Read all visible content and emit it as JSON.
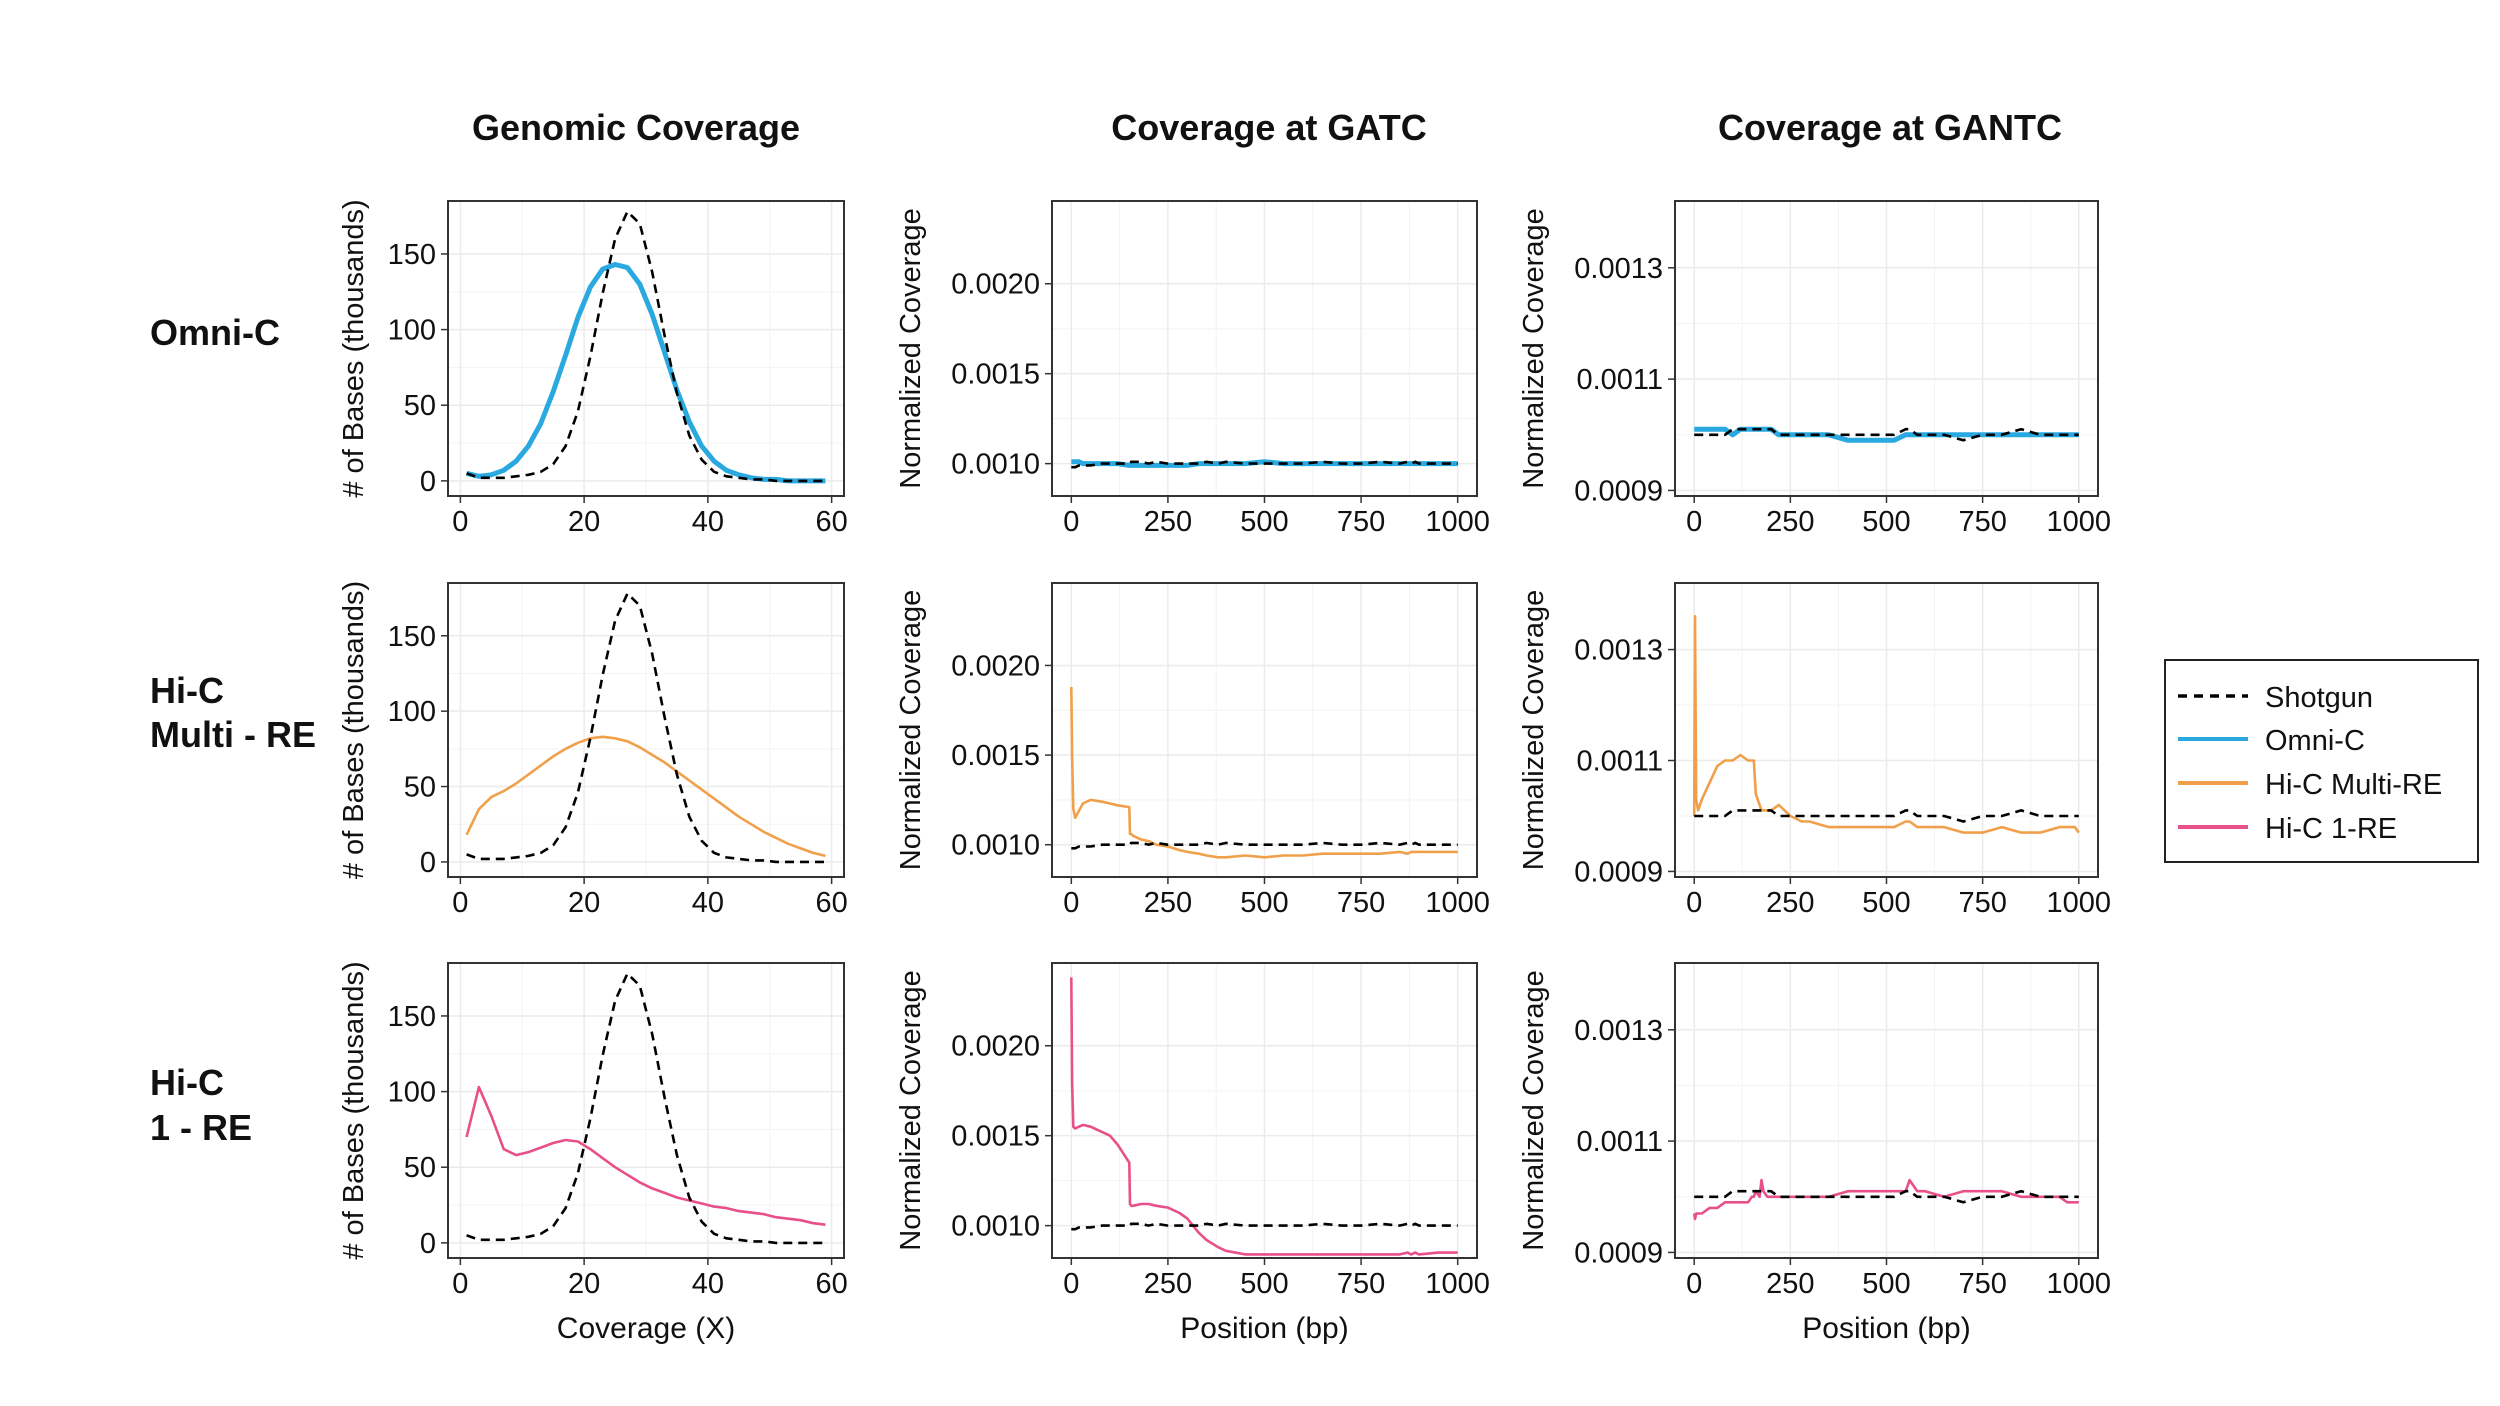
{
  "columns": [
    {
      "key": "genomic",
      "title": "Genomic Coverage"
    },
    {
      "key": "gatc",
      "title": "Coverage at GATC"
    },
    {
      "key": "gantc",
      "title": "Coverage at GANTC"
    }
  ],
  "rows": [
    {
      "key": "omni",
      "label_lines": [
        "Omni-C"
      ],
      "series": "omni"
    },
    {
      "key": "multi",
      "label_lines": [
        "Hi-C",
        "Multi - RE"
      ],
      "series": "multi"
    },
    {
      "key": "one",
      "label_lines": [
        "Hi-C",
        "1 - RE"
      ],
      "series": "one"
    }
  ],
  "colors": {
    "shotgun": "#000000",
    "omni": "#29a9e0",
    "multi": "#f0a04b",
    "one": "#e8508a",
    "grid": "#ebebeb",
    "frame": "#333333"
  },
  "legend": {
    "position": "right",
    "entries": [
      {
        "key": "shotgun",
        "label": "Shotgun",
        "style": "dashed"
      },
      {
        "key": "omni",
        "label": "Omni-C",
        "style": "solid"
      },
      {
        "key": "multi",
        "label": "Hi-C Multi-RE",
        "style": "solid"
      },
      {
        "key": "one",
        "label": "Hi-C 1-RE",
        "style": "solid"
      }
    ]
  },
  "chart_data": [
    {
      "id": "genomic",
      "type": "line",
      "title": "Genomic Coverage",
      "xlabel": "Coverage (X)",
      "ylabel": "# of Bases (thousands)",
      "xlim": [
        -2,
        62
      ],
      "ylim": [
        -10,
        185
      ],
      "xticks": [
        0,
        20,
        40,
        60
      ],
      "yticks": [
        0,
        50,
        100,
        150
      ],
      "ytick_labels": [
        "0",
        "50",
        "100",
        "150"
      ],
      "x": [
        1,
        3,
        5,
        7,
        9,
        11,
        13,
        15,
        17,
        19,
        21,
        23,
        25,
        27,
        29,
        31,
        33,
        35,
        37,
        39,
        41,
        43,
        45,
        47,
        49,
        51,
        53,
        55,
        57,
        59
      ],
      "shotgun": [
        5,
        2,
        2,
        2,
        3,
        4,
        6,
        11,
        23,
        46,
        82,
        124,
        160,
        178,
        170,
        138,
        96,
        58,
        30,
        14,
        6,
        3,
        2,
        1,
        1,
        0,
        0,
        0,
        0,
        0
      ],
      "omni": [
        5,
        3,
        4,
        7,
        13,
        23,
        38,
        59,
        83,
        108,
        128,
        140,
        143,
        141,
        130,
        110,
        85,
        60,
        39,
        23,
        13,
        7,
        4,
        2,
        1,
        1,
        0,
        0,
        0,
        0
      ],
      "multi": [
        18,
        35,
        43,
        47,
        52,
        58,
        64,
        70,
        75,
        79,
        82,
        83,
        82,
        80,
        76,
        71,
        66,
        60,
        54,
        48,
        42,
        36,
        30,
        25,
        20,
        16,
        12,
        9,
        6,
        4
      ],
      "one": [
        70,
        103,
        84,
        62,
        58,
        60,
        63,
        66,
        68,
        67,
        62,
        56,
        50,
        45,
        40,
        36,
        33,
        30,
        28,
        26,
        24,
        23,
        21,
        20,
        19,
        17,
        16,
        15,
        13,
        12
      ]
    },
    {
      "id": "gatc",
      "type": "line",
      "title": "Coverage at GATC",
      "xlabel": "Position (bp)",
      "ylabel": "Normalized Coverage",
      "xlim": [
        -50,
        1050
      ],
      "ylim": [
        0.00082,
        0.00246
      ],
      "xticks": [
        0,
        250,
        500,
        750,
        1000
      ],
      "yticks": [
        0.001,
        0.0015,
        0.002
      ],
      "ytick_labels": [
        "0.0010",
        "0.0015",
        "0.0020"
      ],
      "x": [
        0,
        2,
        5,
        10,
        20,
        30,
        50,
        80,
        100,
        120,
        150,
        152,
        155,
        160,
        180,
        200,
        220,
        250,
        280,
        300,
        330,
        350,
        380,
        400,
        450,
        500,
        550,
        600,
        650,
        700,
        750,
        800,
        850,
        870,
        880,
        890,
        900,
        950,
        1000
      ],
      "shotgun": [
        0.00098,
        0.00098,
        0.00098,
        0.00098,
        0.00099,
        0.00099,
        0.00099,
        0.001,
        0.001,
        0.001,
        0.001,
        0.001,
        0.00101,
        0.00101,
        0.00101,
        0.001,
        0.00101,
        0.001,
        0.001,
        0.001,
        0.001,
        0.00101,
        0.001,
        0.00101,
        0.001,
        0.001,
        0.001,
        0.001,
        0.00101,
        0.001,
        0.001,
        0.00101,
        0.001,
        0.00101,
        0.001,
        0.00101,
        0.001,
        0.001,
        0.001
      ],
      "omni": [
        0.00101,
        0.00101,
        0.00101,
        0.00101,
        0.00101,
        0.001,
        0.001,
        0.001,
        0.001,
        0.001,
        0.00099,
        0.00099,
        0.00099,
        0.00099,
        0.00099,
        0.00099,
        0.00099,
        0.00099,
        0.00099,
        0.00099,
        0.001,
        0.001,
        0.001,
        0.001,
        0.001,
        0.00101,
        0.001,
        0.001,
        0.001,
        0.001,
        0.001,
        0.001,
        0.001,
        0.001,
        0.001,
        0.001,
        0.001,
        0.001,
        0.001
      ],
      "multi": [
        0.00188,
        0.0015,
        0.0012,
        0.00115,
        0.00119,
        0.00123,
        0.00125,
        0.00124,
        0.00123,
        0.00122,
        0.00121,
        0.00106,
        0.00106,
        0.00105,
        0.00103,
        0.00102,
        0.001,
        0.00099,
        0.00097,
        0.00096,
        0.00095,
        0.00094,
        0.00093,
        0.00093,
        0.00094,
        0.00093,
        0.00094,
        0.00094,
        0.00095,
        0.00095,
        0.00095,
        0.00095,
        0.00096,
        0.00095,
        0.00096,
        0.00096,
        0.00096,
        0.00096,
        0.00096
      ],
      "one": [
        0.00238,
        0.0018,
        0.00155,
        0.00154,
        0.00155,
        0.00156,
        0.00155,
        0.00152,
        0.0015,
        0.00145,
        0.00135,
        0.00112,
        0.00111,
        0.00111,
        0.00112,
        0.00112,
        0.00111,
        0.0011,
        0.00107,
        0.00104,
        0.00096,
        0.00092,
        0.00088,
        0.00086,
        0.00084,
        0.00084,
        0.00084,
        0.00084,
        0.00084,
        0.00084,
        0.00084,
        0.00084,
        0.00084,
        0.00085,
        0.00084,
        0.00085,
        0.00084,
        0.00085,
        0.00085
      ]
    },
    {
      "id": "gantc",
      "type": "line",
      "title": "Coverage at GANTC",
      "xlabel": "Position (bp)",
      "ylabel": "Normalized Coverage",
      "xlim": [
        -50,
        1050
      ],
      "ylim": [
        0.00089,
        0.00142
      ],
      "xticks": [
        0,
        250,
        500,
        750,
        1000
      ],
      "yticks": [
        0.0009,
        0.0011,
        0.0013
      ],
      "ytick_labels": [
        "0.0009",
        "0.0011",
        "0.0013"
      ],
      "x": [
        0,
        2,
        5,
        10,
        20,
        40,
        60,
        80,
        100,
        120,
        140,
        150,
        155,
        160,
        170,
        175,
        180,
        190,
        200,
        220,
        250,
        280,
        300,
        350,
        400,
        450,
        480,
        500,
        520,
        550,
        560,
        580,
        600,
        650,
        700,
        750,
        800,
        850,
        900,
        950,
        970,
        990,
        1000
      ],
      "shotgun": [
        0.001,
        0.001,
        0.001,
        0.001,
        0.001,
        0.001,
        0.001,
        0.001,
        0.00101,
        0.00101,
        0.00101,
        0.00101,
        0.00101,
        0.00101,
        0.00101,
        0.00101,
        0.00101,
        0.00101,
        0.00101,
        0.001,
        0.001,
        0.001,
        0.001,
        0.001,
        0.001,
        0.001,
        0.001,
        0.001,
        0.001,
        0.00101,
        0.00101,
        0.001,
        0.001,
        0.001,
        0.00099,
        0.001,
        0.001,
        0.00101,
        0.001,
        0.001,
        0.001,
        0.001,
        0.001
      ],
      "omni": [
        0.00101,
        0.00101,
        0.00101,
        0.00101,
        0.00101,
        0.00101,
        0.00101,
        0.00101,
        0.001,
        0.00101,
        0.00101,
        0.00101,
        0.00101,
        0.00101,
        0.00101,
        0.00101,
        0.00101,
        0.00101,
        0.00101,
        0.001,
        0.001,
        0.001,
        0.001,
        0.001,
        0.00099,
        0.00099,
        0.00099,
        0.00099,
        0.00099,
        0.001,
        0.001,
        0.001,
        0.001,
        0.001,
        0.001,
        0.001,
        0.001,
        0.001,
        0.001,
        0.001,
        0.001,
        0.001,
        0.001
      ],
      "multi": [
        0.001,
        0.00136,
        0.00103,
        0.00101,
        0.00103,
        0.00106,
        0.00109,
        0.0011,
        0.0011,
        0.00111,
        0.0011,
        0.0011,
        0.0011,
        0.00104,
        0.00102,
        0.00101,
        0.00101,
        0.00101,
        0.00101,
        0.00102,
        0.001,
        0.00099,
        0.00099,
        0.00098,
        0.00098,
        0.00098,
        0.00098,
        0.00098,
        0.00098,
        0.00099,
        0.00099,
        0.00098,
        0.00098,
        0.00098,
        0.00097,
        0.00097,
        0.00098,
        0.00097,
        0.00097,
        0.00098,
        0.00098,
        0.00098,
        0.00097
      ],
      "one": [
        0.00097,
        0.00096,
        0.00097,
        0.00097,
        0.00097,
        0.00098,
        0.00098,
        0.00099,
        0.00099,
        0.00099,
        0.00099,
        0.001,
        0.001,
        0.00101,
        0.001,
        0.00103,
        0.00101,
        0.001,
        0.001,
        0.001,
        0.001,
        0.001,
        0.001,
        0.001,
        0.00101,
        0.00101,
        0.00101,
        0.00101,
        0.00101,
        0.00101,
        0.00103,
        0.00101,
        0.00101,
        0.001,
        0.00101,
        0.00101,
        0.00101,
        0.001,
        0.001,
        0.001,
        0.00099,
        0.00099,
        0.00099
      ]
    }
  ]
}
